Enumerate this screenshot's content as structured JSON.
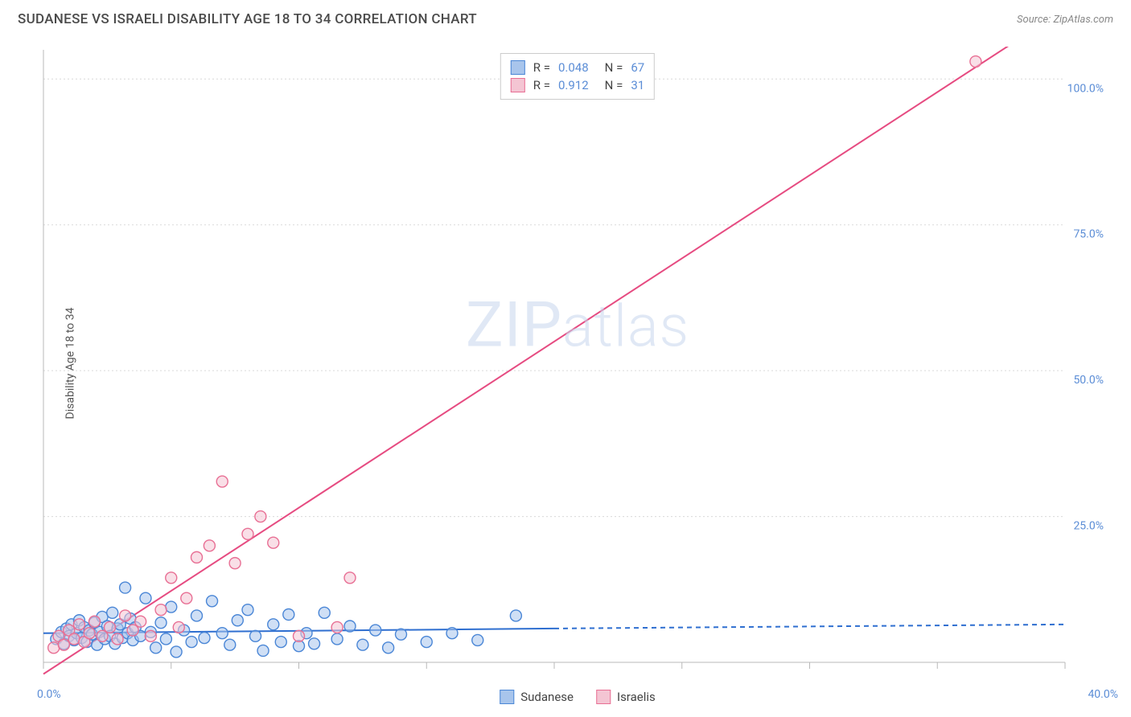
{
  "header": {
    "title": "SUDANESE VS ISRAELI DISABILITY AGE 18 TO 34 CORRELATION CHART",
    "source_prefix": "Source: ",
    "source_name": "ZipAtlas.com"
  },
  "watermark": {
    "zip": "ZIP",
    "atlas": "atlas"
  },
  "y_axis_label": "Disability Age 18 to 34",
  "chart": {
    "type": "scatter",
    "background_color": "#ffffff",
    "grid_color": "#d9d9d9",
    "axis_color": "#b8b8b8",
    "tick_label_color": "#5b8dd6",
    "xlim": [
      0,
      40
    ],
    "ylim": [
      0,
      105
    ],
    "x_ticks": [
      0,
      5,
      10,
      15,
      20,
      25,
      30,
      35,
      40
    ],
    "y_ticks": [
      25,
      50,
      75,
      100
    ],
    "y_tick_labels": [
      "25.0%",
      "50.0%",
      "75.0%",
      "100.0%"
    ],
    "origin_label": "0.0%",
    "x_max_label": "40.0%",
    "marker_radius": 7,
    "marker_stroke_width": 1.4,
    "line_width": 2,
    "series": [
      {
        "name": "Sudanese",
        "fill_color": "#a8c5ec",
        "stroke_color": "#4a86d6",
        "line_color": "#2f6fd0",
        "stats": {
          "R_label": "R =",
          "R": "0.048",
          "N_label": "N =",
          "N": "67"
        },
        "regression": {
          "x1": 0,
          "y1": 5.0,
          "x2": 20,
          "y2": 5.8,
          "dash_after_x": 20,
          "x3": 40,
          "y3": 6.5
        },
        "points": [
          [
            0.5,
            4.0
          ],
          [
            0.7,
            5.2
          ],
          [
            0.8,
            3.2
          ],
          [
            0.9,
            5.8
          ],
          [
            1.0,
            4.5
          ],
          [
            1.1,
            6.5
          ],
          [
            1.2,
            3.8
          ],
          [
            1.3,
            5.0
          ],
          [
            1.4,
            7.2
          ],
          [
            1.5,
            4.2
          ],
          [
            1.6,
            6.0
          ],
          [
            1.7,
            3.5
          ],
          [
            1.8,
            5.5
          ],
          [
            1.9,
            4.8
          ],
          [
            2.0,
            6.8
          ],
          [
            2.1,
            3.0
          ],
          [
            2.2,
            5.2
          ],
          [
            2.3,
            7.8
          ],
          [
            2.4,
            4.0
          ],
          [
            2.5,
            6.2
          ],
          [
            2.6,
            4.5
          ],
          [
            2.7,
            8.5
          ],
          [
            2.8,
            3.2
          ],
          [
            2.9,
            5.8
          ],
          [
            3.0,
            6.5
          ],
          [
            3.1,
            4.2
          ],
          [
            3.2,
            12.8
          ],
          [
            3.3,
            5.0
          ],
          [
            3.4,
            7.5
          ],
          [
            3.5,
            3.8
          ],
          [
            3.6,
            6.0
          ],
          [
            3.8,
            4.5
          ],
          [
            4.0,
            11.0
          ],
          [
            4.2,
            5.2
          ],
          [
            4.4,
            2.5
          ],
          [
            4.6,
            6.8
          ],
          [
            4.8,
            4.0
          ],
          [
            5.0,
            9.5
          ],
          [
            5.2,
            1.8
          ],
          [
            5.5,
            5.5
          ],
          [
            5.8,
            3.5
          ],
          [
            6.0,
            8.0
          ],
          [
            6.3,
            4.2
          ],
          [
            6.6,
            10.5
          ],
          [
            7.0,
            5.0
          ],
          [
            7.3,
            3.0
          ],
          [
            7.6,
            7.2
          ],
          [
            8.0,
            9.0
          ],
          [
            8.3,
            4.5
          ],
          [
            8.6,
            2.0
          ],
          [
            9.0,
            6.5
          ],
          [
            9.3,
            3.5
          ],
          [
            9.6,
            8.2
          ],
          [
            10.0,
            2.8
          ],
          [
            10.3,
            5.0
          ],
          [
            10.6,
            3.2
          ],
          [
            11.0,
            8.5
          ],
          [
            11.5,
            4.0
          ],
          [
            12.0,
            6.2
          ],
          [
            12.5,
            3.0
          ],
          [
            13.0,
            5.5
          ],
          [
            13.5,
            2.5
          ],
          [
            14.0,
            4.8
          ],
          [
            15.0,
            3.5
          ],
          [
            16.0,
            5.0
          ],
          [
            17.0,
            3.8
          ],
          [
            18.5,
            8.0
          ]
        ]
      },
      {
        "name": "Israelis",
        "fill_color": "#f4c5d3",
        "stroke_color": "#e86f94",
        "line_color": "#e64b81",
        "stats": {
          "R_label": "R =",
          "R": "0.912",
          "N_label": "N =",
          "N": "31"
        },
        "regression": {
          "x1": 0,
          "y1": -2,
          "x2": 40,
          "y2": 112
        },
        "points": [
          [
            0.4,
            2.5
          ],
          [
            0.6,
            4.5
          ],
          [
            0.8,
            3.0
          ],
          [
            1.0,
            5.5
          ],
          [
            1.2,
            4.0
          ],
          [
            1.4,
            6.5
          ],
          [
            1.6,
            3.5
          ],
          [
            1.8,
            5.0
          ],
          [
            2.0,
            7.0
          ],
          [
            2.3,
            4.5
          ],
          [
            2.6,
            6.0
          ],
          [
            2.9,
            4.0
          ],
          [
            3.2,
            8.0
          ],
          [
            3.5,
            5.5
          ],
          [
            3.8,
            7.0
          ],
          [
            4.2,
            4.5
          ],
          [
            4.6,
            9.0
          ],
          [
            5.0,
            14.5
          ],
          [
            5.3,
            6.0
          ],
          [
            5.6,
            11.0
          ],
          [
            6.0,
            18.0
          ],
          [
            6.5,
            20.0
          ],
          [
            7.0,
            31.0
          ],
          [
            7.5,
            17.0
          ],
          [
            8.0,
            22.0
          ],
          [
            8.5,
            25.0
          ],
          [
            9.0,
            20.5
          ],
          [
            10.0,
            4.5
          ],
          [
            11.5,
            6.0
          ],
          [
            12.0,
            14.5
          ],
          [
            36.5,
            103.0
          ]
        ]
      }
    ]
  },
  "bottom_legend": [
    {
      "label": "Sudanese",
      "fill": "#a8c5ec",
      "stroke": "#4a86d6"
    },
    {
      "label": "Israelis",
      "fill": "#f4c5d3",
      "stroke": "#e86f94"
    }
  ]
}
